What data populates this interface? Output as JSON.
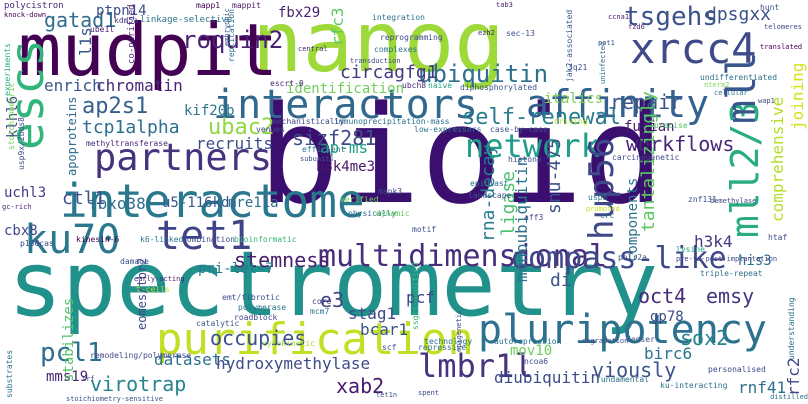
{
  "words": [
    {
      "text": "bioid",
      "color": "#3b0f70"
    },
    {
      "text": "spectrometry",
      "color": "#21918c"
    },
    {
      "text": "nanog",
      "color": "#9ed93a"
    },
    {
      "text": "mudpit",
      "color": "#440154"
    },
    {
      "text": "interactome",
      "color": "#2a788e"
    },
    {
      "text": "purification",
      "color": "#c2df23"
    },
    {
      "text": "pluripotency",
      "color": "#2c728e"
    },
    {
      "text": "partners",
      "color": "#46337e"
    },
    {
      "text": "interactors",
      "color": "#31688e"
    },
    {
      "text": "multidimensional",
      "color": "#472d7b"
    },
    {
      "text": "xrcc4",
      "color": "#3e4a89"
    },
    {
      "text": "affinity",
      "color": "#34618d"
    },
    {
      "text": "network",
      "color": "#1f9e89"
    },
    {
      "text": "sub-proteome",
      "color": "#22a884"
    },
    {
      "text": "escs",
      "color": "#31b57b"
    },
    {
      "text": "ku70",
      "color": "#2a788e"
    },
    {
      "text": "tet1",
      "color": "#404387"
    },
    {
      "text": "mll2/3",
      "color": "#27ad81"
    },
    {
      "text": "mll",
      "color": "#39568c"
    },
    {
      "text": "compass-like",
      "color": "#3f4889"
    },
    {
      "text": "lmbr1l",
      "color": "#46327e"
    },
    {
      "text": "ubiquitin",
      "color": "#2d708e"
    },
    {
      "text": "tsgehs",
      "color": "#3b528b"
    },
    {
      "text": "hup56",
      "color": "#3e4989"
    },
    {
      "text": "roquin2",
      "color": "#482173"
    },
    {
      "text": "circagfg1",
      "color": "#453882"
    },
    {
      "text": "ap2s1",
      "color": "#355f8d"
    },
    {
      "text": "ubac2",
      "color": "#8fd744"
    },
    {
      "text": "tcp1alpha",
      "color": "#2e6e8e"
    },
    {
      "text": "sizf281",
      "color": "#3e4c8a"
    },
    {
      "text": "self-renewal",
      "color": "#287c8e"
    },
    {
      "text": "repair",
      "color": "#3a548c"
    },
    {
      "text": "workflows",
      "color": "#472777"
    },
    {
      "text": "stemness",
      "color": "#482071"
    },
    {
      "text": "occupies",
      "color": "#3b518b"
    },
    {
      "text": "fujian",
      "color": "#481c6e"
    },
    {
      "text": "tantalizingly",
      "color": "#5cc863"
    },
    {
      "text": "comprehensive",
      "color": "#b5de2b"
    },
    {
      "text": "joining",
      "color": "#d5e21a"
    },
    {
      "text": "snu-475",
      "color": "#3b528b"
    },
    {
      "text": "rna-decay",
      "color": "#287d8e"
    },
    {
      "text": "ligase",
      "color": "#4ac16d"
    },
    {
      "text": "monoubiquitin",
      "color": "#2d708e"
    },
    {
      "text": "oct4",
      "color": "#472a7a"
    },
    {
      "text": "emsy",
      "color": "#453581"
    },
    {
      "text": "sox2",
      "color": "#25858e"
    },
    {
      "text": "gp78",
      "color": "#3d4d8a"
    },
    {
      "text": "birc6",
      "color": "#2b748e"
    },
    {
      "text": "pcl1",
      "color": "#2e6d8e"
    },
    {
      "text": "virotrap",
      "color": "#25848e"
    },
    {
      "text": "datasets",
      "color": "#2c718e"
    },
    {
      "text": "hydroxymethylase",
      "color": "#3e4c8a"
    },
    {
      "text": "xab2",
      "color": "#481a6c"
    },
    {
      "text": "viously",
      "color": "#3b528b"
    },
    {
      "text": "diubiquitin",
      "color": "#3d4d8a"
    },
    {
      "text": "mov10",
      "color": "#6ece58"
    },
    {
      "text": "rnf41",
      "color": "#2d708e"
    },
    {
      "text": "rfc2",
      "color": "#3f4788"
    },
    {
      "text": "mms19",
      "color": "#482475"
    },
    {
      "text": "stabilizes",
      "color": "#52c569"
    },
    {
      "text": "bcar1",
      "color": "#3a548c"
    },
    {
      "text": "stag1",
      "color": "#3f4889"
    },
    {
      "text": "pcf",
      "color": "#3f4889"
    },
    {
      "text": "e3",
      "color": "#414487"
    },
    {
      "text": "pri-let-7",
      "color": "#2a788e"
    },
    {
      "text": "fbxo38",
      "color": "#2f6b8e"
    },
    {
      "text": "u5-116kd",
      "color": "#39568c"
    },
    {
      "text": "mre11a",
      "color": "#2f6c8e"
    },
    {
      "text": "ctl1",
      "color": "#3b528b"
    },
    {
      "text": "uchl3",
      "color": "#443a83"
    },
    {
      "text": "cbx8",
      "color": "#3f4788"
    },
    {
      "text": "recruits",
      "color": "#3d4e8a"
    },
    {
      "text": "chromatin",
      "color": "#482677"
    },
    {
      "text": "enrich",
      "color": "#39568c"
    },
    {
      "text": "gatad1",
      "color": "#2f6b8e"
    },
    {
      "text": "ptpn14",
      "color": "#3d4e8a"
    },
    {
      "text": "fbx29",
      "color": "#481f70"
    },
    {
      "text": "rfc3",
      "color": "#5ec962"
    },
    {
      "text": "dpsgxx",
      "color": "#3b528b"
    },
    {
      "text": "ap-ms",
      "color": "#1fa187"
    },
    {
      "text": "h3k4me3",
      "color": "#481668"
    },
    {
      "text": "h3k4",
      "color": "#453781"
    },
    {
      "text": "his3",
      "color": "#2e6e8e"
    },
    {
      "text": "di",
      "color": "#3b528b"
    },
    {
      "text": "italics",
      "color": "#7ad151"
    },
    {
      "text": "kif20b",
      "color": "#2b758e"
    },
    {
      "text": "identification",
      "color": "#6ece58"
    },
    {
      "text": "klhl6",
      "color": "#3d4e8a"
    },
    {
      "text": "l1s",
      "color": "#3b528b"
    },
    {
      "text": "apoproteins",
      "color": "#2f6c8e"
    },
    {
      "text": "components",
      "color": "#2c728e"
    },
    {
      "text": "eomes/tbr2",
      "color": "#3f4889"
    },
    {
      "text": "polycistron",
      "color": "#482878"
    },
    {
      "text": "knock-down",
      "color": "#440154"
    },
    {
      "text": "mapp1",
      "color": "#440154"
    },
    {
      "text": "mappit",
      "color": "#481567"
    },
    {
      "text": "co-purified",
      "color": "#482878"
    },
    {
      "text": "linkage-selective",
      "color": "#2c728e"
    },
    {
      "text": "kdm5a",
      "color": "#433e85"
    },
    {
      "text": "ube1l",
      "color": "#482173"
    },
    {
      "text": "experiments",
      "color": "#26ad81"
    },
    {
      "text": "stoichiometric",
      "color": "#75d054"
    },
    {
      "text": "usp9x/2bds8",
      "color": "#3e4c8a"
    },
    {
      "text": "gc-rich",
      "color": "#482475"
    },
    {
      "text": "replication",
      "color": "#2c718e"
    },
    {
      "text": "embryonic",
      "color": "#3b528b"
    },
    {
      "text": "central",
      "color": "#482878"
    },
    {
      "text": "integration",
      "color": "#2d708e"
    },
    {
      "text": "reprogramming",
      "color": "#3f4889"
    },
    {
      "text": "complexes",
      "color": "#2c728e"
    },
    {
      "text": "tab3",
      "color": "#482071"
    },
    {
      "text": "sec-13",
      "color": "#3b528b"
    },
    {
      "text": "ccna1",
      "color": "#481668"
    },
    {
      "text": "fzd6",
      "color": "#481c6e"
    },
    {
      "text": "telomeres",
      "color": "#3e4a89"
    },
    {
      "text": "translated",
      "color": "#440154"
    },
    {
      "text": "ezh2",
      "color": "#482777"
    },
    {
      "text": "jak2-associated",
      "color": "#38588c"
    },
    {
      "text": "3q21",
      "color": "#3b528b"
    },
    {
      "text": "pot1",
      "color": "#3b528b"
    },
    {
      "text": "uninfected",
      "color": "#2d708e"
    },
    {
      "text": "undifferentiated",
      "color": "#2d708e"
    },
    {
      "text": "ntera2",
      "color": "#7ad151"
    },
    {
      "text": "cellular",
      "color": "#2c728e"
    },
    {
      "text": "wap1",
      "color": "#414487"
    },
    {
      "text": "ubch8",
      "color": "#482878"
    },
    {
      "text": "escrt-0",
      "color": "#482475"
    },
    {
      "text": "transduction",
      "color": "#3f4788"
    },
    {
      "text": "naive",
      "color": "#22a884"
    },
    {
      "text": "diphosphorylated",
      "color": "#3b528b"
    },
    {
      "text": "immunoprecipitation-mass",
      "color": "#2c728e"
    },
    {
      "text": "mechanistically",
      "color": "#3f4788"
    },
    {
      "text": "low-expressors",
      "color": "#2c728e"
    },
    {
      "text": "case-by-case",
      "color": "#3b528b"
    },
    {
      "text": "driving",
      "color": "#bddf26"
    },
    {
      "text": "precise",
      "color": "#52c569"
    },
    {
      "text": "carcinogenetic",
      "color": "#3f4889"
    },
    {
      "text": "venues",
      "color": "#3f4788"
    },
    {
      "text": "methyltransferase",
      "color": "#482878"
    },
    {
      "text": "efficient",
      "color": "#2a788e"
    },
    {
      "text": "subunits",
      "color": "#3b528b"
    },
    {
      "text": "histone",
      "color": "#3f4889"
    },
    {
      "text": "mapk3",
      "color": "#3f4889"
    },
    {
      "text": "physically",
      "color": "#2c728e"
    },
    {
      "text": "verified",
      "color": "#75d054"
    },
    {
      "text": "dynamic",
      "color": "#5ec962"
    },
    {
      "text": "epiblast",
      "color": "#2d708e"
    },
    {
      "text": "landscape",
      "color": "#3b528b"
    },
    {
      "text": "aff3",
      "color": "#3f4889"
    },
    {
      "text": "usp8",
      "color": "#2c728e"
    },
    {
      "text": "crc",
      "color": "#2d708e"
    },
    {
      "text": "promoted",
      "color": "#c8e020"
    },
    {
      "text": "znf131",
      "color": "#3b528b"
    },
    {
      "text": "demethylase",
      "color": "#3f4889"
    },
    {
      "text": "motif",
      "color": "#3b528b"
    },
    {
      "text": "kinesin-6",
      "color": "#440154"
    },
    {
      "text": "k6-linked",
      "color": "#2c728e"
    },
    {
      "text": "combination",
      "color": "#3f4889"
    },
    {
      "text": "bioinformatic",
      "color": "#35b779"
    },
    {
      "text": "p130cas",
      "color": "#3f4889"
    },
    {
      "text": "damage",
      "color": "#3b528b"
    },
    {
      "text": "early-acting",
      "color": "#482878"
    },
    {
      "text": "t-cells",
      "color": "#b5de2b"
    },
    {
      "text": "emt/fibrotic",
      "color": "#3b528b"
    },
    {
      "text": "polymerase",
      "color": "#2c728e"
    },
    {
      "text": "roadblock",
      "color": "#3f4889"
    },
    {
      "text": "catalytic",
      "color": "#3b528b"
    },
    {
      "text": "cytokinetic",
      "color": "#a0da39"
    },
    {
      "text": "core",
      "color": "#3f4889"
    },
    {
      "text": "mcm7",
      "color": "#2c728e"
    },
    {
      "text": "ssgts-modified",
      "color": "#35b779"
    },
    {
      "text": "triple-repeat",
      "color": "#2d708e"
    },
    {
      "text": "lysine",
      "color": "#22a884"
    },
    {
      "text": "pre-to-post-implantation",
      "color": "#3f4889"
    },
    {
      "text": "polr2a",
      "color": "#3b528b"
    },
    {
      "text": "hunt",
      "color": "#3b528b"
    },
    {
      "text": "htaf",
      "color": "#3f4889"
    },
    {
      "text": "ncoa6",
      "color": "#3b528b"
    },
    {
      "text": "repressive",
      "color": "#2c728e"
    },
    {
      "text": "scf",
      "color": "#3b528b"
    },
    {
      "text": "technology",
      "color": "#2d708e"
    },
    {
      "text": "epigenetic",
      "color": "#3f4889"
    },
    {
      "text": "autorepression",
      "color": "#2c728e"
    },
    {
      "text": "degradation",
      "color": "#3f4889"
    },
    {
      "text": "denser",
      "color": "#3b528b"
    },
    {
      "text": "fundamental",
      "color": "#2c728e"
    },
    {
      "text": "ku-interacting",
      "color": "#2c728e"
    },
    {
      "text": "personalised",
      "color": "#3f4889"
    },
    {
      "text": "understanding",
      "color": "#2d708e"
    },
    {
      "text": "remodeling/polymerase",
      "color": "#3f4889"
    },
    {
      "text": "stoichiometry-sensitive",
      "color": "#3b528b"
    },
    {
      "text": "substrates",
      "color": "#2c728e"
    },
    {
      "text": "trf",
      "color": "#3f4889"
    },
    {
      "text": "tet1n",
      "color": "#3b528b"
    },
    {
      "text": "distilled",
      "color": "#2d708e"
    },
    {
      "text": "spent",
      "color": "#3f4889"
    }
  ]
}
